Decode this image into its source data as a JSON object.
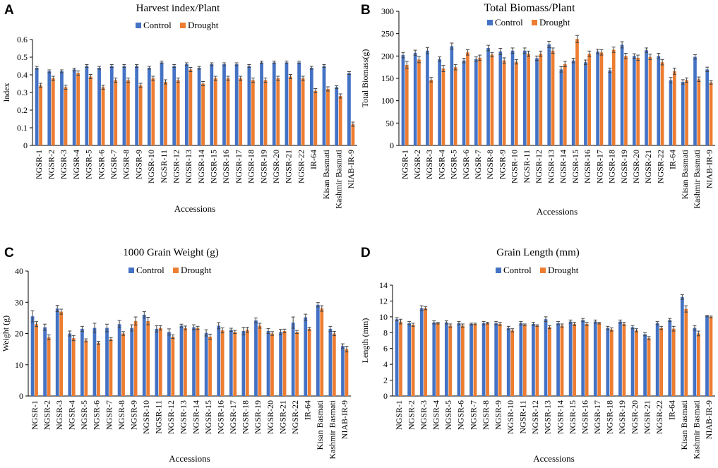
{
  "colors": {
    "control": "#4472c4",
    "drought": "#ed7d31",
    "error_bar": "#444444",
    "axis": "#000000"
  },
  "chart_data": [
    {
      "panel": "A",
      "type": "bar",
      "title": "Harvest index/Plant",
      "xlabel": "Accessions",
      "ylabel": "Index",
      "ylim": [
        0,
        0.6
      ],
      "yticks": [
        0,
        0.1,
        0.2,
        0.3,
        0.4,
        0.5,
        0.6
      ],
      "ytick_labels": [
        "0",
        "0.1",
        "0.2",
        "0.3",
        "0.4",
        "0.5",
        "0.6"
      ],
      "legend": "top-center",
      "categories": [
        "NGSR-1",
        "NGSR-2",
        "NGSR-3",
        "NGSR-4",
        "NGSR-5",
        "NGSR-6",
        "NGSR-7",
        "NGSR-8",
        "NGSR-9",
        "NGSR-10",
        "NGSR-11",
        "NGSR-12",
        "NGSR-13",
        "NGSR-14",
        "NGSR-15",
        "NGSR-16",
        "NGSR-17",
        "NGSR-18",
        "NGSR-19",
        "NGSR-20",
        "NGSR-21",
        "NGSR-22",
        "IR-64",
        "Kisan Basmati",
        "Kashmir Basmati",
        "NIAB-IR-9"
      ],
      "series": [
        {
          "name": "Control",
          "values": [
            0.44,
            0.42,
            0.42,
            0.43,
            0.45,
            0.44,
            0.45,
            0.45,
            0.45,
            0.44,
            0.47,
            0.45,
            0.46,
            0.44,
            0.46,
            0.46,
            0.46,
            0.45,
            0.47,
            0.47,
            0.47,
            0.47,
            0.44,
            0.45,
            0.33,
            0.41
          ],
          "errors": [
            0.008,
            0.008,
            0.008,
            0.008,
            0.008,
            0.008,
            0.008,
            0.008,
            0.008,
            0.008,
            0.008,
            0.008,
            0.008,
            0.008,
            0.008,
            0.008,
            0.008,
            0.008,
            0.008,
            0.008,
            0.008,
            0.008,
            0.008,
            0.008,
            0.008,
            0.008
          ]
        },
        {
          "name": "Drought",
          "values": [
            0.34,
            0.38,
            0.33,
            0.41,
            0.39,
            0.33,
            0.37,
            0.37,
            0.34,
            0.38,
            0.36,
            0.37,
            0.43,
            0.35,
            0.38,
            0.38,
            0.38,
            0.37,
            0.37,
            0.38,
            0.39,
            0.38,
            0.31,
            0.32,
            0.28,
            0.12
          ],
          "errors": [
            0.012,
            0.012,
            0.012,
            0.012,
            0.012,
            0.012,
            0.012,
            0.012,
            0.012,
            0.012,
            0.012,
            0.012,
            0.012,
            0.012,
            0.012,
            0.012,
            0.012,
            0.012,
            0.012,
            0.012,
            0.012,
            0.012,
            0.012,
            0.012,
            0.012,
            0.012
          ]
        }
      ]
    },
    {
      "panel": "B",
      "type": "bar",
      "title": "Total Biomass/Plant",
      "xlabel": "Accessions",
      "ylabel": "Total Biomass(g)",
      "ylim": [
        0,
        300
      ],
      "yticks": [
        0,
        50,
        100,
        150,
        200,
        250,
        300
      ],
      "ytick_labels": [
        "0",
        "50",
        "100",
        "150",
        "200",
        "250",
        "300"
      ],
      "legend": "top-center",
      "categories": [
        "NGSR-1",
        "NGSR-2",
        "NGSR-3",
        "NGSR-4",
        "NGSR-5",
        "NGSR-6",
        "NGSR-7",
        "NGSR-8",
        "NGSR-9",
        "NGSR-10",
        "NGSR-11",
        "NGSR-12",
        "NGSR-13",
        "NGSR-14",
        "NGSR-15",
        "NGSR-16",
        "NGSR-17",
        "NGSR-18",
        "NGSR-19",
        "NGSR-20",
        "NGSR-21",
        "NGSR-22",
        "IR-64",
        "Kisan Basmati",
        "Kashmir Basmati",
        "NIAB-IR-9"
      ],
      "series": [
        {
          "name": "Control",
          "values": [
            202,
            207,
            212,
            193,
            222,
            190,
            193,
            218,
            210,
            212,
            212,
            195,
            226,
            170,
            190,
            186,
            210,
            168,
            225,
            200,
            213,
            200,
            146,
            142,
            198,
            170
          ],
          "errors": [
            6,
            6,
            7,
            5,
            7,
            5,
            5,
            6,
            7,
            6,
            6,
            5,
            7,
            6,
            5,
            5,
            5,
            5,
            7,
            5,
            5,
            6,
            6,
            5,
            5,
            5
          ]
        },
        {
          "name": "Drought",
          "values": [
            180,
            192,
            147,
            172,
            175,
            208,
            196,
            203,
            190,
            187,
            205,
            205,
            212,
            182,
            238,
            205,
            208,
            214,
            200,
            196,
            198,
            186,
            166,
            146,
            148,
            141
          ],
          "errors": [
            8,
            7,
            5,
            7,
            6,
            6,
            6,
            5,
            6,
            5,
            6,
            6,
            6,
            6,
            8,
            6,
            6,
            6,
            6,
            6,
            6,
            6,
            7,
            5,
            5,
            4
          ]
        }
      ]
    },
    {
      "panel": "C",
      "type": "bar",
      "title": "1000  Grain Weight  (g)",
      "xlabel": "Accessions",
      "ylabel": "Weight (g)",
      "ylim": [
        0,
        40
      ],
      "yticks": [
        0,
        10,
        20,
        30,
        40
      ],
      "ytick_labels": [
        "0",
        "10",
        "20",
        "30",
        "40"
      ],
      "legend": "top-center",
      "categories": [
        "NGSR-1",
        "NGSR-2",
        "NGSR-3",
        "NGSR-4",
        "NGSR-5",
        "NGSR-6",
        "NGSR-7",
        "NGSR-8",
        "NGSR-9",
        "NGSR-10",
        "NGSR-11",
        "NGSR-12",
        "NGSR-13",
        "NGSR-14",
        "NGSR-15",
        "NGSR-16",
        "NGSR-17",
        "NGSR-18",
        "NGSR-19",
        "NGSR-20",
        "NGSR-21",
        "NGSR-22",
        "IR-64",
        "Kisan Basmati",
        "Kashmir Basmati",
        "NIAB-IR-9"
      ],
      "series": [
        {
          "name": "Control",
          "values": [
            25.5,
            22,
            28,
            20,
            21.5,
            21.8,
            21.8,
            23,
            21.8,
            26,
            21.5,
            20.5,
            22.5,
            22,
            20.2,
            22.5,
            21.2,
            20.8,
            24.2,
            20.8,
            20.5,
            23.5,
            25.2,
            29.2,
            21.5,
            16
          ],
          "errors": [
            1.8,
            1,
            1,
            0.8,
            0.8,
            1.5,
            1.2,
            1.2,
            1,
            1,
            1,
            1,
            0.5,
            0.8,
            1,
            1,
            0.5,
            1.2,
            0.8,
            0.8,
            0.8,
            1.8,
            1,
            0.7,
            0.8,
            0.7
          ]
        },
        {
          "name": "Drought",
          "values": [
            23,
            18.8,
            27,
            18.5,
            17.8,
            17,
            18.2,
            20,
            24,
            24,
            21.8,
            19,
            21.8,
            21.8,
            19,
            21,
            20.5,
            21.2,
            22.5,
            20,
            20.8,
            20.5,
            21.5,
            28,
            20,
            15
          ],
          "errors": [
            0.8,
            0.8,
            0.8,
            0.8,
            0.5,
            0.5,
            0.5,
            0.6,
            1.3,
            1.2,
            0.7,
            0.6,
            0.6,
            0.5,
            0.8,
            0.8,
            0.5,
            0.8,
            0.8,
            0.6,
            0.6,
            0.5,
            0.5,
            0.9,
            0.7,
            0.9
          ]
        }
      ]
    },
    {
      "panel": "D",
      "type": "bar",
      "title": "Grain Length (mm)",
      "xlabel": "Accessions",
      "ylabel": "Length (mm)",
      "ylim": [
        0,
        14
      ],
      "yticks": [
        0,
        2,
        4,
        6,
        8,
        10,
        12,
        14
      ],
      "ytick_labels": [
        "0",
        "2",
        "4",
        "6",
        "8",
        "10",
        "12",
        "14"
      ],
      "legend": "top-center",
      "categories": [
        "NGSR-1",
        "NGSR-2",
        "NGSR-3",
        "NGSR-4",
        "NGSR-5",
        "NGSR-6",
        "NGSR-7",
        "NGSR-8",
        "NGSR-9",
        "NGSR-10",
        "NGSR-11",
        "NGSR-12",
        "NGSR-13",
        "NGSR-14",
        "NGSR-15",
        "NGSR-16",
        "NGSR-17",
        "NGSR-18",
        "NGSR-19",
        "NGSR-20",
        "NGSR-21",
        "NGSR-22",
        "IR-64",
        "Kisan Basmati",
        "Kashmir Basmati",
        "NIAB-IR-9"
      ],
      "series": [
        {
          "name": "Control",
          "values": [
            9.7,
            9.2,
            11.1,
            9.3,
            9.3,
            9.2,
            9.1,
            9.2,
            9.2,
            8.6,
            9.2,
            9.1,
            9.7,
            9.2,
            9.4,
            9.6,
            9.4,
            8.6,
            9.4,
            8.7,
            7.8,
            9.2,
            9.6,
            12.5,
            8.6,
            10.1
          ],
          "errors": [
            0.2,
            0.2,
            0.3,
            0.2,
            0.2,
            0.2,
            0.1,
            0.2,
            0.2,
            0.2,
            0.2,
            0.2,
            0.3,
            0.2,
            0.2,
            0.2,
            0.2,
            0.2,
            0.2,
            0.2,
            0.2,
            0.2,
            0.2,
            0.3,
            0.3,
            0.1
          ]
        },
        {
          "name": "Drought",
          "values": [
            9.4,
            9.0,
            11.1,
            9.2,
            8.9,
            8.9,
            9.1,
            9.2,
            9.1,
            8.3,
            9.0,
            8.9,
            8.7,
            8.9,
            9.1,
            9.1,
            9.2,
            8.4,
            9.1,
            8.3,
            7.3,
            8.6,
            8.5,
            11.0,
            7.9,
            10.0
          ],
          "errors": [
            0.3,
            0.2,
            0.2,
            0.1,
            0.2,
            0.2,
            0.1,
            0.1,
            0.2,
            0.2,
            0.1,
            0.1,
            0.2,
            0.2,
            0.2,
            0.2,
            0.1,
            0.2,
            0.2,
            0.2,
            0.2,
            0.2,
            0.3,
            0.4,
            0.3,
            0.1
          ]
        }
      ]
    }
  ]
}
